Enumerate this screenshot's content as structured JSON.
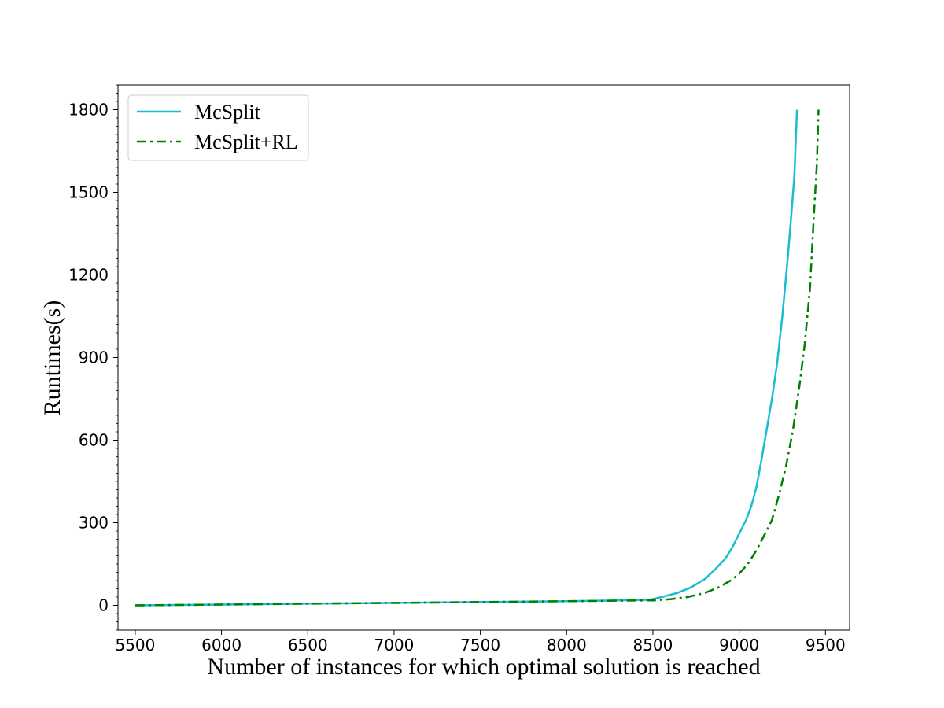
{
  "chart_data": {
    "type": "line",
    "xlabel": "Number of instances for which optimal solution is reached",
    "ylabel": "Runtimes(s)",
    "xlim": [
      5400,
      9640
    ],
    "ylim": [
      -90,
      1890
    ],
    "xticks": [
      5500,
      6000,
      6500,
      7000,
      7500,
      8000,
      8500,
      9000,
      9500
    ],
    "yticks": [
      0,
      300,
      600,
      900,
      1200,
      1500,
      1800
    ],
    "xtick_labels": [
      "5500",
      "6000",
      "6500",
      "7000",
      "7500",
      "8000",
      "8500",
      "9000",
      "9500"
    ],
    "ytick_labels": [
      "0",
      "300",
      "600",
      "900",
      "1200",
      "1500",
      "1800"
    ],
    "grid": false,
    "legend_position": "top-left",
    "series": [
      {
        "name": "McSplit",
        "color": "#17becf",
        "style": "solid",
        "x": [
          5500,
          6000,
          6500,
          7000,
          7500,
          8000,
          8480,
          8550,
          8640,
          8720,
          8800,
          8860,
          8920,
          8960,
          9000,
          9040,
          9070,
          9100,
          9130,
          9160,
          9190,
          9220,
          9250,
          9280,
          9300,
          9320,
          9335
        ],
        "y": [
          0,
          3,
          6,
          9,
          12,
          15,
          20,
          30,
          45,
          65,
          95,
          130,
          170,
          210,
          260,
          310,
          360,
          430,
          530,
          640,
          750,
          880,
          1050,
          1250,
          1400,
          1560,
          1800
        ]
      },
      {
        "name": "McSplit+RL",
        "color": "#008000",
        "style": "dashdot",
        "x": [
          5500,
          6000,
          6500,
          7000,
          7500,
          8000,
          8500,
          8600,
          8700,
          8800,
          8880,
          8950,
          9000,
          9050,
          9100,
          9150,
          9190,
          9230,
          9270,
          9310,
          9350,
          9380,
          9410,
          9430,
          9450,
          9460
        ],
        "y": [
          0,
          3,
          6,
          9,
          12,
          15,
          18,
          22,
          30,
          45,
          65,
          90,
          115,
          150,
          200,
          260,
          310,
          400,
          500,
          630,
          800,
          950,
          1150,
          1380,
          1600,
          1800
        ]
      }
    ]
  }
}
